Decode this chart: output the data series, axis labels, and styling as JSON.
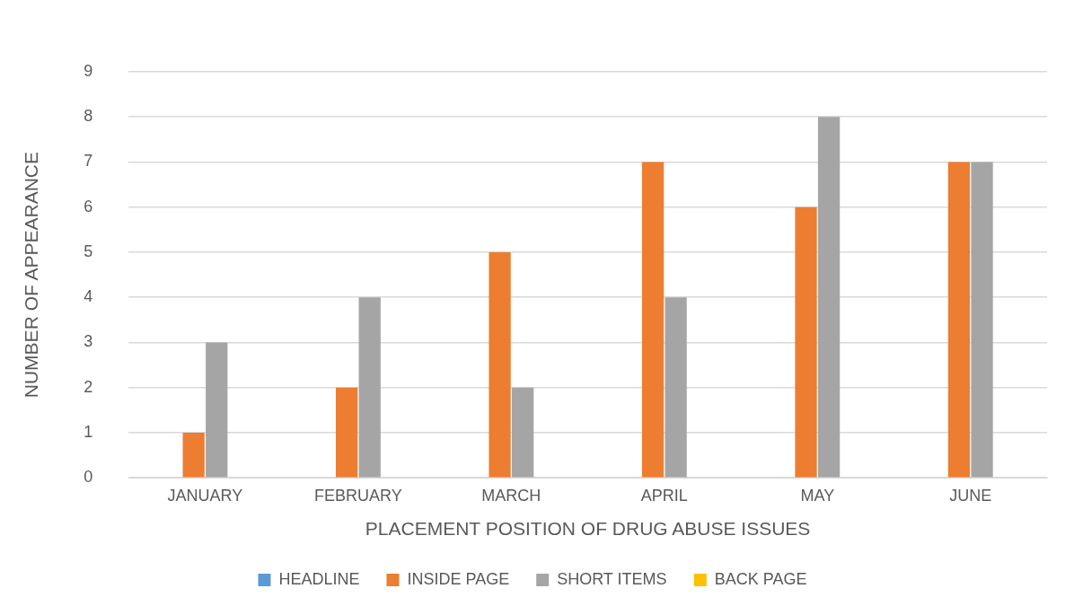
{
  "chart_data": {
    "type": "bar",
    "xlabel": "PLACEMENT POSITION OF DRUG ABUSE ISSUES",
    "ylabel": "NUMBER OF APPEARANCE",
    "categories": [
      "JANUARY",
      "FEBRUARY",
      "MARCH",
      "APRIL",
      "MAY",
      "JUNE"
    ],
    "series": [
      {
        "name": "HEADLINE",
        "color": "#5b9bd5",
        "values": [
          0,
          0,
          0,
          0,
          0,
          0
        ]
      },
      {
        "name": "INSIDE PAGE",
        "color": "#ed7d31",
        "values": [
          1,
          2,
          5,
          7,
          6,
          7
        ]
      },
      {
        "name": "SHORT ITEMS",
        "color": "#a5a5a5",
        "values": [
          3,
          4,
          2,
          4,
          8,
          7
        ]
      },
      {
        "name": "BACK PAGE",
        "color": "#ffc000",
        "values": [
          0,
          0,
          0,
          0,
          0,
          0
        ]
      }
    ],
    "ylim": [
      0,
      9
    ],
    "yticks": [
      0,
      1,
      2,
      3,
      4,
      5,
      6,
      7,
      8,
      9
    ],
    "grid": "y",
    "legend": "bottom"
  }
}
